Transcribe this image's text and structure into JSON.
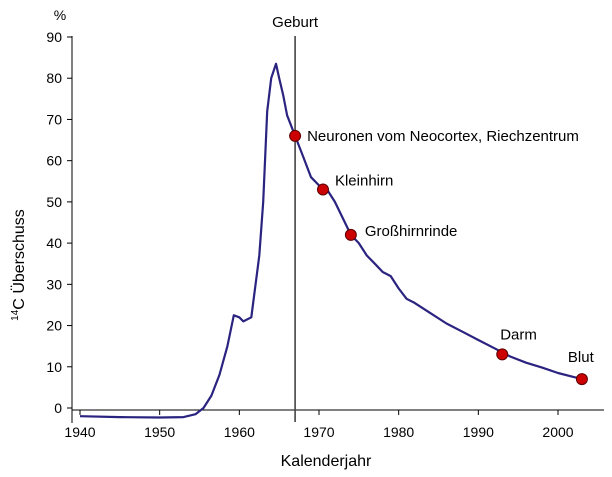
{
  "chart_data": {
    "type": "line",
    "title": "",
    "xlabel": "Kalenderjahr",
    "ylabel": "Überschuss",
    "ylabel_prefix": "14",
    "ylabel_letter": "C",
    "y_unit": "%",
    "xlim": [
      1940,
      2005
    ],
    "ylim": [
      -3,
      90
    ],
    "x_ticks": [
      1940,
      1950,
      1960,
      1970,
      1980,
      1990,
      2000
    ],
    "y_ticks": [
      0,
      10,
      20,
      30,
      40,
      50,
      60,
      70,
      80,
      90
    ],
    "x_tick_labels": [
      "1940",
      "1950",
      "1960",
      "1970",
      "1980",
      "1990",
      "2000"
    ],
    "y_tick_labels": [
      "0",
      "10",
      "20",
      "30",
      "40",
      "50",
      "60",
      "70",
      "80",
      "90"
    ],
    "grid": false,
    "line_color": "#2b2380",
    "marker_color": "#cc0000",
    "series": [
      {
        "x": [
          1940,
          1945,
          1950,
          1953,
          1954.5,
          1955.5,
          1956.5,
          1957.5,
          1958.5,
          1959.3,
          1960,
          1960.5,
          1961.5,
          1962.5,
          1963,
          1963.5,
          1964,
          1964.6,
          1965,
          1965.5,
          1966,
          1967,
          1968,
          1969,
          1970,
          1971,
          1972,
          1973,
          1974,
          1975,
          1976,
          1977,
          1978,
          1979,
          1980,
          1981,
          1982,
          1984,
          1986,
          1988,
          1990,
          1992,
          1994,
          1996,
          1998,
          2000,
          2002,
          2003
        ],
        "y": [
          -2,
          -2.2,
          -2.3,
          -2.2,
          -1.5,
          0,
          3,
          8,
          15,
          22.5,
          22,
          21,
          22,
          37,
          50,
          72,
          80,
          83.5,
          80,
          76,
          71,
          66,
          61,
          56,
          54,
          53,
          50,
          46,
          42,
          40,
          37,
          35,
          33,
          32,
          29,
          26.5,
          25.5,
          23,
          20.5,
          18.5,
          16.5,
          14.5,
          12.5,
          11,
          9.8,
          8.5,
          7.5,
          7
        ]
      }
    ],
    "birth_line": {
      "x": 1967,
      "label": "Geburt"
    },
    "markers": [
      {
        "x": 1967,
        "y": 66,
        "label": "Neuronen vom Neocortex, Riechzentrum"
      },
      {
        "x": 1970.5,
        "y": 53,
        "label": "Kleinhirn"
      },
      {
        "x": 1974,
        "y": 42,
        "label": "Großhirnrinde"
      },
      {
        "x": 1993,
        "y": 13,
        "label": "Darm"
      },
      {
        "x": 2003,
        "y": 7,
        "label": "Blut"
      }
    ]
  }
}
